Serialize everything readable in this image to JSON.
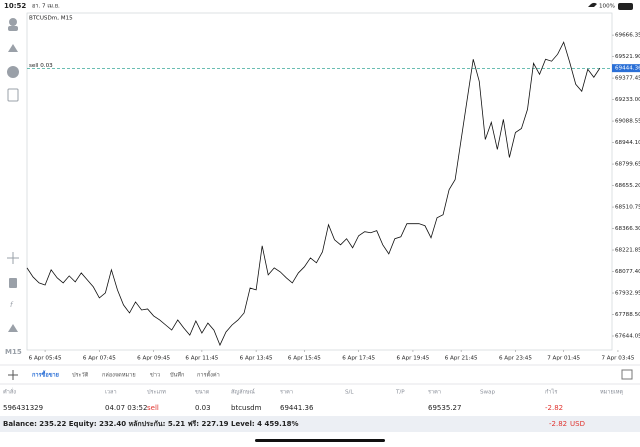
{
  "status_bar": {
    "time": "10:52",
    "date": "อา. 7 เม.ย.",
    "battery": "100%"
  },
  "chart_data": {
    "type": "line",
    "title": "BTCUSDm, M15",
    "timeframe": "M15",
    "color": "#111111",
    "categories": [
      null,
      null,
      null,
      "6 Apr 05:45",
      null,
      null,
      null,
      null,
      null,
      null,
      null,
      null,
      "6 Apr 07:45",
      null,
      null,
      null,
      null,
      null,
      null,
      null,
      null,
      "6 Apr 09:45",
      null,
      null,
      null,
      null,
      null,
      null,
      null,
      "6 Apr 11:45",
      null,
      null,
      null,
      null,
      null,
      null,
      null,
      null,
      "6 Apr 13:45",
      null,
      null,
      null,
      null,
      null,
      null,
      null,
      "6 Apr 15:45",
      null,
      null,
      null,
      null,
      null,
      null,
      null,
      null,
      "6 Apr 17:45",
      null,
      null,
      null,
      null,
      null,
      null,
      null,
      null,
      "6 Apr 19:45",
      null,
      null,
      null,
      null,
      null,
      null,
      null,
      "6 Apr 21:45",
      null,
      null,
      null,
      null,
      null,
      null,
      null,
      null,
      "6 Apr 23:45",
      null,
      null,
      null,
      null,
      null,
      null,
      null,
      "7 Apr 01:45",
      null,
      null,
      null,
      null,
      null,
      null,
      null,
      null,
      "7 Apr 03:45"
    ],
    "values": [
      68102,
      68041,
      68001,
      67987,
      68089,
      68035,
      68001,
      68048,
      68008,
      68068,
      68021,
      67974,
      67900,
      67934,
      68089,
      67954,
      67853,
      67799,
      67873,
      67819,
      67826,
      67779,
      67752,
      67718,
      67684,
      67752,
      67698,
      67650,
      67745,
      67664,
      67731,
      67684,
      67583,
      67671,
      67718,
      67752,
      67799,
      67967,
      67954,
      68250,
      68055,
      68102,
      68075,
      68035,
      68001,
      68068,
      68109,
      68169,
      68136,
      68210,
      68392,
      68291,
      68257,
      68298,
      68237,
      68318,
      68345,
      68338,
      68352,
      68257,
      68196,
      68298,
      68311,
      68399,
      68399,
      68399,
      68385,
      68304,
      68439,
      68459,
      68628,
      68695,
      68965,
      69235,
      69504,
      69356,
      68965,
      69080,
      68898,
      69100,
      68844,
      69012,
      69039,
      69167,
      69477,
      69403,
      69504,
      69491,
      69538,
      69619,
      69484,
      69336,
      69289,
      69437,
      69383,
      69444.36,
      null,
      null,
      null
    ],
    "ylim": [
      67550,
      69815
    ],
    "yticks": [
      69666.35,
      {
        "value": 69521.9,
        "label": "69521.90"
      },
      69377.45,
      {
        "value": 69233,
        "label": "69233.00"
      },
      69088.55,
      {
        "value": 68944.1,
        "label": "68944.10"
      },
      68799.65,
      {
        "value": 68655.2,
        "label": "68655.20"
      },
      68510.75,
      {
        "value": 68366.3,
        "label": "68366.30"
      },
      68221.85,
      {
        "value": 68077.4,
        "label": "68077.40"
      },
      67932.95,
      {
        "value": 67788.5,
        "label": "67788.50"
      },
      67644.05
    ],
    "current_price": 69444.36,
    "current_price_color": "#2a6fd6",
    "order_line": {
      "label": "sell 0.03",
      "value": 69441.36,
      "color": "#3aa89a"
    }
  },
  "tabs": [
    "การซื้อขาย",
    "ประวัติ",
    "กล่องจดหมาย",
    "ข่าว",
    "บันทึก",
    "การตั้งค่า"
  ],
  "active_tab": 0,
  "table": {
    "columns": [
      "คำสั่ง",
      "เวลา",
      "ประเภท",
      "ขนาด",
      "สัญลักษณ์",
      "ราคา",
      "S/L",
      "T/P",
      "ราคา",
      "Swap",
      "กำไร",
      "หมายเหตุ"
    ],
    "rows": [
      [
        "596431329",
        "04.07 03:52",
        "sell",
        "0.03",
        "btcusdm",
        "69441.36",
        null,
        null,
        "69535.27",
        null,
        "-2.82",
        null
      ]
    ]
  },
  "footer": {
    "summary": "Balance: 235.22 Equity: 232.40 หลักประกัน: 5.21 ฟรี: 227.19 Level: 4 459.18%",
    "profit": "-2.82",
    "currency": "USD"
  }
}
